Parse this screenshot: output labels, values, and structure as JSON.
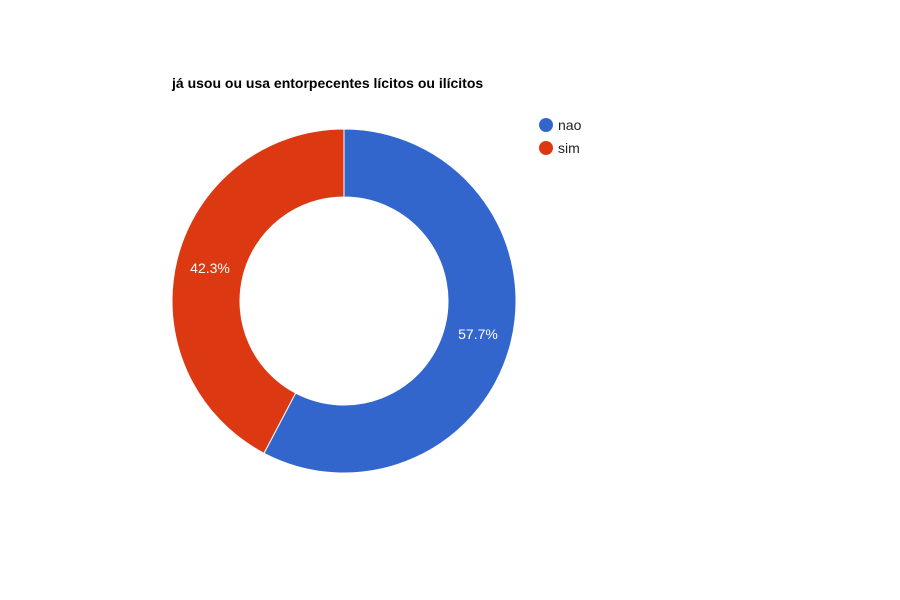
{
  "chart_data": {
    "type": "pie",
    "variant": "donut",
    "title": "já usou ou usa entorpecentes lícitos ou ilícitos",
    "categories": [
      "nao",
      "sim"
    ],
    "values": [
      57.7,
      42.3
    ],
    "value_labels": [
      "57.7%",
      "42.3%"
    ],
    "colors": [
      "#3366cc",
      "#dc3912"
    ],
    "legend_position": "right",
    "label_color": "#ffffff"
  }
}
